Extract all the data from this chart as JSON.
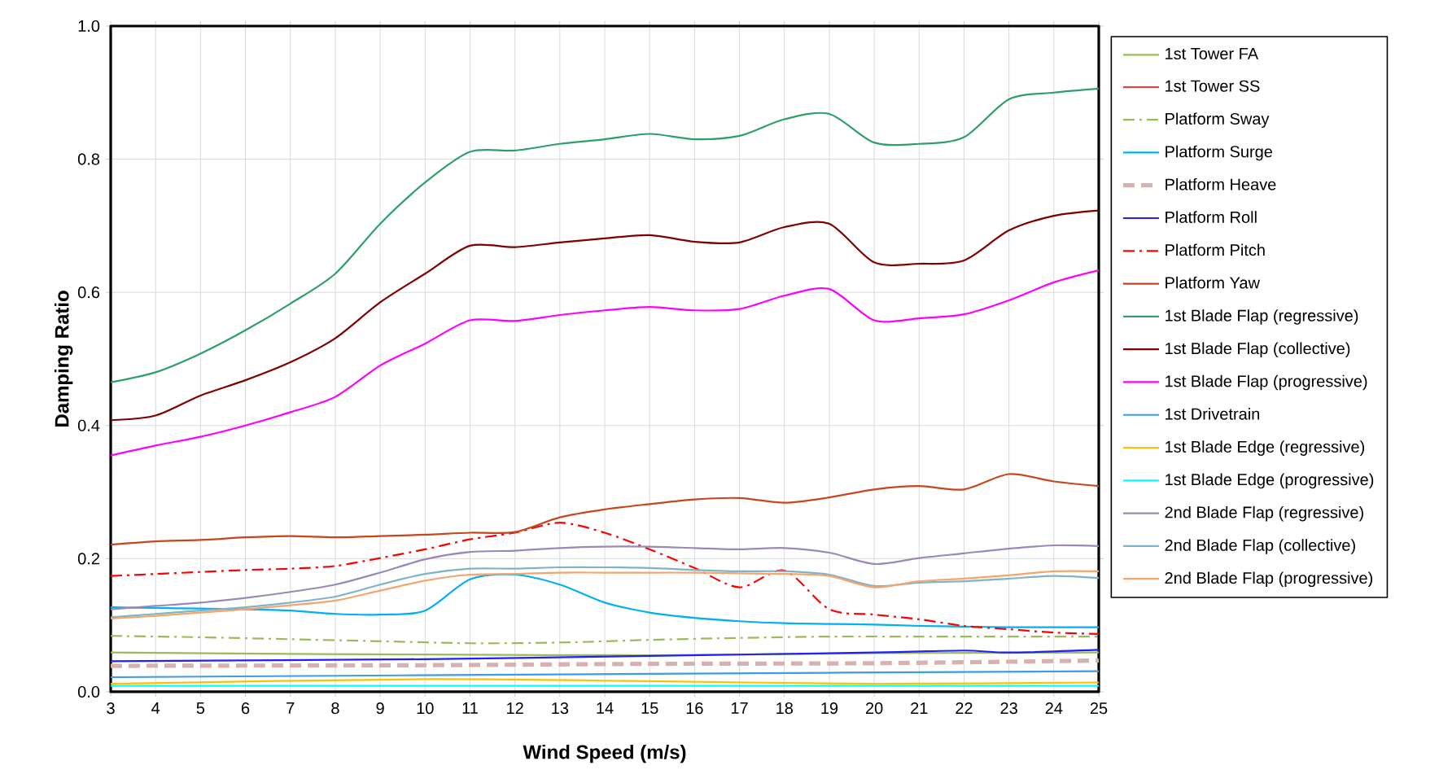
{
  "chart_data": {
    "type": "line",
    "xlabel": "Wind Speed (m/s)",
    "ylabel": "Damping Ratio",
    "x": [
      3,
      4,
      5,
      6,
      7,
      8,
      9,
      10,
      11,
      12,
      13,
      14,
      15,
      16,
      17,
      18,
      19,
      20,
      21,
      22,
      23,
      24,
      25
    ],
    "xlim": [
      3,
      25
    ],
    "xticks": [
      3,
      4,
      5,
      6,
      7,
      8,
      9,
      10,
      11,
      12,
      13,
      14,
      15,
      16,
      17,
      18,
      19,
      20,
      21,
      22,
      23,
      24,
      25
    ],
    "ylim": [
      0,
      1
    ],
    "yticks": [
      {
        "value": 0,
        "label": "0.0"
      },
      0.2,
      0.4,
      0.6,
      0.8,
      {
        "value": 1,
        "label": "1.0"
      }
    ],
    "grid": true,
    "legend": "right",
    "marker": "none",
    "series": [
      {
        "name": "1st Tower FA",
        "color": "#9bbb59",
        "x": [
          3,
          7,
          10,
          15,
          20,
          25
        ],
        "values": [
          0.059,
          0.057,
          0.056,
          0.055,
          0.058,
          0.059
        ]
      },
      {
        "name": "1st Tower SS",
        "color": "#c0504d",
        "values": [
          null,
          null,
          null,
          null,
          null,
          null,
          null,
          null,
          null,
          null,
          null,
          null,
          null,
          null,
          null,
          null,
          null,
          null,
          null,
          null,
          null,
          null,
          null
        ]
      },
      {
        "name": "Platform Sway",
        "color": "#9bbb59",
        "line_style": "dashdot",
        "x": [
          3,
          5,
          7,
          9,
          11,
          13,
          15,
          17,
          19,
          21,
          23,
          25
        ],
        "values": [
          0.084,
          0.082,
          0.079,
          0.076,
          0.073,
          0.074,
          0.078,
          0.081,
          0.083,
          0.083,
          0.083,
          0.083
        ]
      },
      {
        "name": "Platform Surge",
        "color": "#00b0f0",
        "values": [
          0.127,
          0.126,
          0.125,
          0.124,
          0.122,
          0.117,
          0.116,
          0.122,
          0.169,
          0.176,
          0.161,
          0.134,
          0.119,
          0.111,
          0.106,
          0.103,
          0.102,
          0.101,
          0.099,
          0.098,
          0.097,
          0.097,
          0.097
        ]
      },
      {
        "name": "Platform Heave",
        "color": "#d9b0b0",
        "line_style": "dashed",
        "x": [
          3,
          10,
          15,
          20,
          25
        ],
        "values": [
          0.039,
          0.04,
          0.042,
          0.043,
          0.047
        ]
      },
      {
        "name": "Platform Roll",
        "color": "#2020ff",
        "x": [
          3,
          10,
          15,
          20,
          22,
          23,
          25
        ],
        "values": [
          0.046,
          0.049,
          0.054,
          0.059,
          0.062,
          0.059,
          0.063
        ]
      },
      {
        "name": "Platform Pitch",
        "color": "#ff0000",
        "line_style": "dashdot",
        "values": [
          0.174,
          0.177,
          0.18,
          0.183,
          0.185,
          0.189,
          0.201,
          0.214,
          0.229,
          0.239,
          0.254,
          0.239,
          0.214,
          0.186,
          0.157,
          0.182,
          0.124,
          0.116,
          0.109,
          0.099,
          0.094,
          0.089,
          0.087
        ]
      },
      {
        "name": "Platform Yaw",
        "color": "#c8461e",
        "values": [
          0.221,
          0.226,
          0.228,
          0.232,
          0.234,
          0.232,
          0.234,
          0.236,
          0.239,
          0.24,
          0.262,
          0.274,
          0.282,
          0.289,
          0.291,
          0.284,
          0.292,
          0.304,
          0.309,
          0.304,
          0.327,
          0.316,
          0.309
        ]
      },
      {
        "name": "1st Blade Flap (regressive)",
        "color": "#2e9e6b",
        "values": [
          0.465,
          0.48,
          0.508,
          0.543,
          0.583,
          0.628,
          0.703,
          0.765,
          0.811,
          0.813,
          0.823,
          0.83,
          0.838,
          0.83,
          0.835,
          0.86,
          0.868,
          0.825,
          0.823,
          0.833,
          0.89,
          0.9,
          0.906
        ]
      },
      {
        "name": "1st Blade Flap (collective)",
        "color": "#7f0000",
        "values": [
          0.408,
          0.415,
          0.445,
          0.468,
          0.495,
          0.531,
          0.585,
          0.628,
          0.67,
          0.668,
          0.675,
          0.681,
          0.686,
          0.676,
          0.675,
          0.698,
          0.703,
          0.645,
          0.643,
          0.648,
          0.693,
          0.715,
          0.723
        ]
      },
      {
        "name": "1st Blade Flap (progressive)",
        "color": "#ff00ff",
        "values": [
          0.355,
          0.37,
          0.383,
          0.4,
          0.42,
          0.443,
          0.49,
          0.523,
          0.558,
          0.557,
          0.566,
          0.573,
          0.578,
          0.573,
          0.575,
          0.595,
          0.605,
          0.558,
          0.561,
          0.567,
          0.588,
          0.615,
          0.633
        ]
      },
      {
        "name": "1st Drivetrain",
        "color": "#3f9be6",
        "x": [
          3,
          15,
          25
        ],
        "values": [
          0.022,
          0.027,
          0.031
        ]
      },
      {
        "name": "1st Blade Edge (regressive)",
        "color": "#ffc000",
        "x": [
          3,
          10,
          15,
          20,
          25
        ],
        "values": [
          0.012,
          0.019,
          0.016,
          0.012,
          0.014
        ]
      },
      {
        "name": "1st Blade Edge (progressive)",
        "color": "#00ffff",
        "x": [
          3,
          25
        ],
        "values": [
          0.009,
          0.009
        ]
      },
      {
        "name": "2nd Blade Flap (regressive)",
        "color": "#9c88b8",
        "values": [
          0.124,
          0.129,
          0.134,
          0.141,
          0.15,
          0.161,
          0.179,
          0.199,
          0.21,
          0.212,
          0.216,
          0.218,
          0.218,
          0.216,
          0.214,
          0.216,
          0.209,
          0.192,
          0.201,
          0.208,
          0.215,
          0.22,
          0.219
        ]
      },
      {
        "name": "2nd Blade Flap (collective)",
        "color": "#7fb4c8",
        "values": [
          0.112,
          0.117,
          0.122,
          0.127,
          0.134,
          0.143,
          0.161,
          0.177,
          0.185,
          0.185,
          0.187,
          0.187,
          0.186,
          0.183,
          0.181,
          0.181,
          0.176,
          0.159,
          0.164,
          0.166,
          0.17,
          0.174,
          0.171
        ]
      },
      {
        "name": "2nd Blade Flap (progressive)",
        "color": "#f4a46c",
        "values": [
          0.11,
          0.114,
          0.119,
          0.124,
          0.13,
          0.137,
          0.152,
          0.167,
          0.176,
          0.177,
          0.179,
          0.179,
          0.179,
          0.179,
          0.178,
          0.177,
          0.174,
          0.157,
          0.166,
          0.17,
          0.175,
          0.181,
          0.181
        ]
      }
    ]
  }
}
